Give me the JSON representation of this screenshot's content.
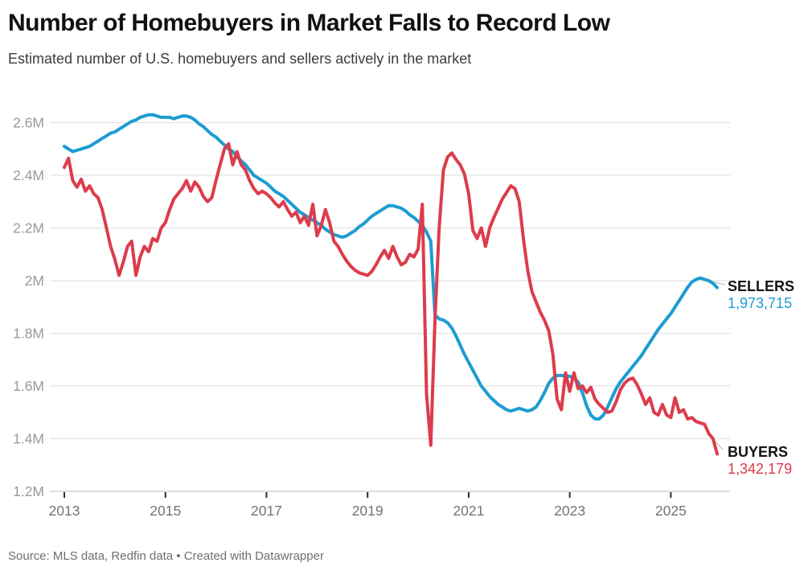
{
  "header": {
    "title": "Number of Homebuyers in Market Falls to Record Low",
    "subtitle": "Estimated number of U.S. homebuyers and sellers actively in the market"
  },
  "end_labels": {
    "sellers": {
      "name": "SELLERS",
      "value": "1,973,715"
    },
    "buyers": {
      "name": "BUYERS",
      "value": "1,342,179"
    }
  },
  "footer": {
    "source": "Source: MLS data, Redfin data • Created with Datawrapper"
  },
  "chart_data": {
    "type": "line",
    "title": "Number of Homebuyers in Market Falls to Record Low",
    "subtitle": "Estimated number of U.S. homebuyers and sellers actively in the market",
    "unit": "millions",
    "x_start": "2013-01",
    "x_end": "2025-12",
    "points_per_year": 12,
    "ylim": [
      1.2,
      2.72
    ],
    "grid": true,
    "y_ticks": [
      {
        "value": 1.2,
        "label": "1.2M"
      },
      {
        "value": 1.4,
        "label": "1.4M"
      },
      {
        "value": 1.6,
        "label": "1.6M"
      },
      {
        "value": 1.8,
        "label": "1.8M"
      },
      {
        "value": 2.0,
        "label": "2M"
      },
      {
        "value": 2.2,
        "label": "2.2M"
      },
      {
        "value": 2.4,
        "label": "2.4M"
      },
      {
        "value": 2.6,
        "label": "2.6M"
      }
    ],
    "x_ticks": [
      2013,
      2015,
      2017,
      2019,
      2021,
      2023,
      2025
    ],
    "series": [
      {
        "name": "SELLERS",
        "color": "#1d9cd1",
        "last_value_exact": 1973715,
        "values": [
          2.51,
          2.5,
          2.49,
          2.495,
          2.5,
          2.505,
          2.51,
          2.52,
          2.53,
          2.54,
          2.55,
          2.56,
          2.565,
          2.575,
          2.585,
          2.595,
          2.605,
          2.61,
          2.62,
          2.625,
          2.63,
          2.63,
          2.625,
          2.62,
          2.62,
          2.62,
          2.615,
          2.62,
          2.625,
          2.625,
          2.62,
          2.61,
          2.595,
          2.585,
          2.57,
          2.555,
          2.545,
          2.53,
          2.515,
          2.5,
          2.49,
          2.47,
          2.455,
          2.44,
          2.42,
          2.4,
          2.39,
          2.38,
          2.37,
          2.355,
          2.34,
          2.33,
          2.32,
          2.305,
          2.29,
          2.275,
          2.26,
          2.25,
          2.24,
          2.23,
          2.22,
          2.21,
          2.195,
          2.185,
          2.175,
          2.17,
          2.165,
          2.17,
          2.18,
          2.19,
          2.205,
          2.215,
          2.23,
          2.245,
          2.255,
          2.265,
          2.275,
          2.285,
          2.285,
          2.28,
          2.275,
          2.265,
          2.25,
          2.24,
          2.225,
          2.21,
          2.185,
          2.15,
          1.87,
          1.855,
          1.85,
          1.84,
          1.82,
          1.79,
          1.755,
          1.72,
          1.69,
          1.66,
          1.63,
          1.6,
          1.58,
          1.56,
          1.545,
          1.53,
          1.52,
          1.51,
          1.505,
          1.51,
          1.515,
          1.51,
          1.505,
          1.51,
          1.52,
          1.545,
          1.575,
          1.61,
          1.63,
          1.64,
          1.64,
          1.638,
          1.637,
          1.63,
          1.615,
          1.575,
          1.525,
          1.49,
          1.475,
          1.475,
          1.49,
          1.52,
          1.555,
          1.59,
          1.615,
          1.635,
          1.655,
          1.675,
          1.695,
          1.715,
          1.74,
          1.765,
          1.79,
          1.815,
          1.835,
          1.855,
          1.875,
          1.9,
          1.925,
          1.95,
          1.975,
          1.995,
          2.005,
          2.01,
          2.005,
          2.0,
          1.99,
          1.973715
        ]
      },
      {
        "name": "BUYERS",
        "color": "#dc3c4c",
        "last_value_exact": 1342179,
        "values": [
          2.43,
          2.465,
          2.38,
          2.355,
          2.385,
          2.34,
          2.36,
          2.33,
          2.315,
          2.27,
          2.2,
          2.13,
          2.08,
          2.02,
          2.07,
          2.13,
          2.15,
          2.02,
          2.09,
          2.13,
          2.11,
          2.16,
          2.15,
          2.2,
          2.22,
          2.27,
          2.31,
          2.33,
          2.35,
          2.38,
          2.34,
          2.375,
          2.355,
          2.32,
          2.3,
          2.315,
          2.38,
          2.44,
          2.5,
          2.52,
          2.44,
          2.49,
          2.44,
          2.42,
          2.38,
          2.35,
          2.33,
          2.34,
          2.33,
          2.315,
          2.295,
          2.28,
          2.3,
          2.27,
          2.245,
          2.26,
          2.22,
          2.245,
          2.21,
          2.29,
          2.17,
          2.21,
          2.27,
          2.22,
          2.15,
          2.13,
          2.1,
          2.075,
          2.055,
          2.04,
          2.03,
          2.025,
          2.02,
          2.035,
          2.06,
          2.09,
          2.115,
          2.085,
          2.13,
          2.09,
          2.06,
          2.07,
          2.1,
          2.09,
          2.12,
          2.29,
          1.57,
          1.375,
          1.85,
          2.2,
          2.42,
          2.47,
          2.485,
          2.46,
          2.44,
          2.405,
          2.33,
          2.19,
          2.16,
          2.2,
          2.13,
          2.2,
          2.24,
          2.275,
          2.31,
          2.335,
          2.36,
          2.35,
          2.3,
          2.16,
          2.04,
          1.96,
          1.92,
          1.88,
          1.85,
          1.81,
          1.72,
          1.55,
          1.51,
          1.65,
          1.58,
          1.65,
          1.59,
          1.6,
          1.575,
          1.595,
          1.55,
          1.53,
          1.515,
          1.5,
          1.505,
          1.54,
          1.585,
          1.61,
          1.625,
          1.63,
          1.605,
          1.57,
          1.53,
          1.555,
          1.5,
          1.49,
          1.53,
          1.49,
          1.48,
          1.555,
          1.5,
          1.51,
          1.475,
          1.48,
          1.465,
          1.46,
          1.455,
          1.42,
          1.4,
          1.342179
        ]
      }
    ]
  }
}
